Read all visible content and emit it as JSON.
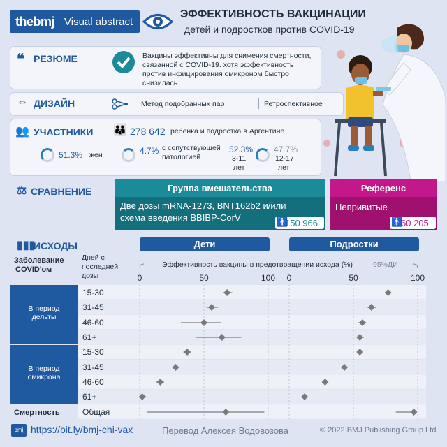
{
  "header": {
    "logo": "thebmj",
    "logo_sub": "Visual abstract",
    "title": "ЭФФЕКТИВНОСТЬ ВАКЦИНАЦИИ",
    "subtitle": "детей и подростков против COVID-19"
  },
  "summary": {
    "label": "РЕЗЮМЕ",
    "text": "Вакцины эффективны для снижения смертности, связанной с COVID-19. хотя эффективность против инфицирования омикроном быстро снизилась"
  },
  "design": {
    "label": "ДИЗАЙН",
    "method": "Метод подобранных пар",
    "type": "Ретроспективное"
  },
  "participants": {
    "label": "УЧАСТНИКИ",
    "count": "278 642",
    "count_text": "ребёнка и подростка в Аргентине",
    "women_pct": "51.3%",
    "women_label": "жен",
    "comorbid_pct": "4.7%",
    "comorbid_label_1": "с сопутствующей",
    "comorbid_label_2": "патологией",
    "age1_pct": "52.3%",
    "age1_label_1": "3-11",
    "age1_label_2": "лет",
    "age2_pct": "47.7%",
    "age2_label_1": "12-17",
    "age2_label_2": "лет",
    "women_frac": 0.513,
    "comorbid_frac": 0.047,
    "age1_frac": 0.523,
    "age2_frac": 0.477
  },
  "comparison": {
    "label": "СРАВНЕНИЕ",
    "intervention_title": "Группа вмешательства",
    "intervention_text_1": "Две дозы mRNA-1273, BNT162b2 и/или",
    "intervention_text_2": "схема введения BBIBP-CorV",
    "intervention_n": "150 966",
    "reference_title": "Референс",
    "reference_text": "Непривитые",
    "reference_n": "60 205"
  },
  "outcomes": {
    "label": "ИСХОДЫ",
    "col_children": "Дети",
    "col_teens": "Подростки",
    "h_disease_1": "Заболевание",
    "h_disease_2": "COVID'ом",
    "h_days_1": "Дней с",
    "h_days_2": "последней",
    "h_days_3": "дозы",
    "axis_title": "Эффективность вакцины в предотвращении исхода (%)",
    "ci_label": "95%ДИ",
    "ticks": [
      "0",
      "50",
      "100"
    ],
    "group_delta_1": "В период",
    "group_delta_2": "дельты",
    "group_omicron_1": "В период",
    "group_omicron_2": "омикрона",
    "mortality": "Смертность",
    "mortality_row": "Общая",
    "rows": [
      "15-30",
      "31-45",
      "46-60",
      "61+",
      "15-30",
      "31-45",
      "46-60",
      "61+"
    ]
  },
  "footer": {
    "link": "https://bit.ly/bmj-chi-vax",
    "translator": "Перевод Алексея Водовозова",
    "copyright": "© 2022 BMJ Publishing Group Ltd"
  },
  "chart_data": {
    "type": "scatter",
    "title": "",
    "xlabel": "Эффективность вакцины в предотвращении исхода (%)",
    "xlim": [
      0,
      100
    ],
    "categories": [
      "Дельта 15-30",
      "Дельта 31-45",
      "Дельта 46-60",
      "Дельта 61+",
      "Омикрон 15-30",
      "Омикрон 31-45",
      "Омикрон 46-60",
      "Омикрон 61+",
      "Смертность Общая"
    ],
    "series": [
      {
        "name": "Дети",
        "values": [
          68,
          56,
          50,
          64,
          37,
          28,
          16,
          2,
          67
        ],
        "ci_low": [
          65,
          52,
          32,
          44,
          34,
          26,
          13,
          0,
          6
        ],
        "ci_high": [
          72,
          61,
          63,
          79,
          40,
          31,
          19,
          5,
          97
        ]
      },
      {
        "name": "Подростки",
        "values": [
          77,
          64,
          57,
          55,
          55,
          43,
          28,
          12,
          97
        ],
        "ci_low": [
          75,
          61,
          54,
          53,
          53,
          41,
          27,
          11,
          83
        ],
        "ci_high": [
          79,
          68,
          60,
          58,
          56,
          45,
          30,
          13,
          99
        ]
      }
    ],
    "colors": {
      "point": "#7a7a7a",
      "group": "#1f5aa0"
    }
  }
}
